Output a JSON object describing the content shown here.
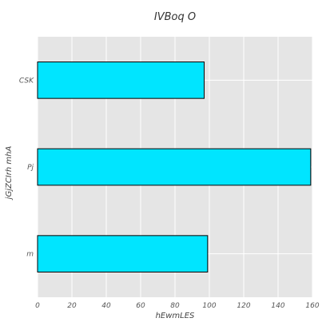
{
  "chart_data": {
    "type": "bar",
    "orientation": "horizontal",
    "title": "IVBoq O",
    "xlabel": "hEwmLES",
    "ylabel": "jGjZCIrh mhA",
    "categories": [
      "CSK",
      "Pj",
      "m"
    ],
    "values": [
      97,
      159,
      99
    ],
    "xlim": [
      0,
      160
    ],
    "xticks": [
      0,
      20,
      40,
      60,
      80,
      100,
      120,
      140,
      160
    ],
    "grid": true,
    "colors": {
      "bar": "#00e5ff",
      "bar_edge": "#000000",
      "plot_bg": "#e5e5e5",
      "grid": "#ffffff"
    }
  }
}
